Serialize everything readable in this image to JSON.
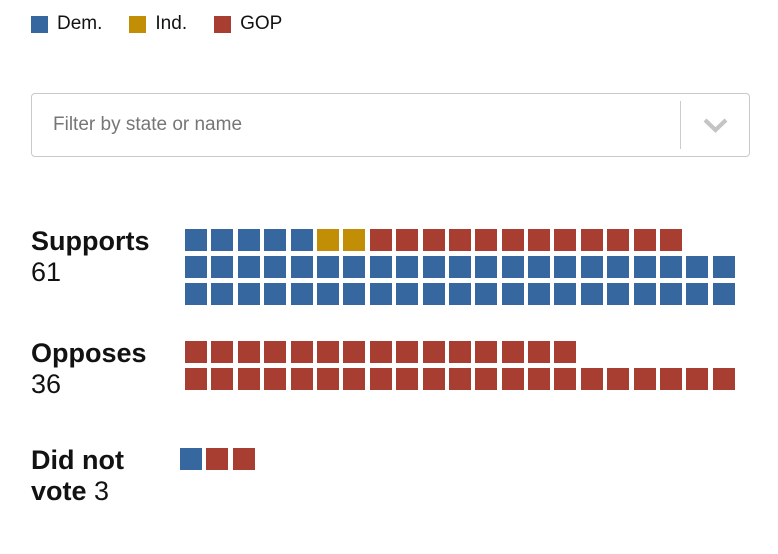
{
  "party_colors": {
    "dem": "#36679E",
    "ind": "#C28E06",
    "gop": "#A83D32"
  },
  "legend": {
    "items": [
      {
        "party": "dem",
        "label": "Dem."
      },
      {
        "party": "ind",
        "label": "Ind."
      },
      {
        "party": "gop",
        "label": "GOP"
      }
    ]
  },
  "filter": {
    "placeholder": "Filter by state or name"
  },
  "groups": [
    {
      "name": "Supports",
      "count": 61,
      "rows": [
        [
          {
            "party": "dem",
            "n": 5
          },
          {
            "party": "ind",
            "n": 2
          },
          {
            "party": "gop",
            "n": 12
          }
        ],
        [
          {
            "party": "dem",
            "n": 21
          }
        ],
        [
          {
            "party": "dem",
            "n": 21
          }
        ]
      ]
    },
    {
      "name": "Opposes",
      "count": 36,
      "rows": [
        [
          {
            "party": "gop",
            "n": 15
          }
        ],
        [
          {
            "party": "gop",
            "n": 21
          }
        ]
      ]
    },
    {
      "name": "Did not vote",
      "count": 3,
      "rows": [
        [
          {
            "party": "dem",
            "n": 1
          },
          {
            "party": "gop",
            "n": 2
          }
        ]
      ]
    }
  ],
  "chart_data": {
    "type": "bar",
    "variant": "unit-waffle",
    "title": "",
    "categories": [
      "Supports",
      "Opposes",
      "Did not vote"
    ],
    "totals": [
      61,
      36,
      3
    ],
    "series": [
      {
        "name": "Dem.",
        "color": "#36679E",
        "values": [
          47,
          0,
          1
        ]
      },
      {
        "name": "Ind.",
        "color": "#C28E06",
        "values": [
          2,
          0,
          0
        ]
      },
      {
        "name": "GOP",
        "color": "#A83D32",
        "values": [
          12,
          36,
          2
        ]
      }
    ],
    "legend_position": "top",
    "unit_value": 1
  }
}
